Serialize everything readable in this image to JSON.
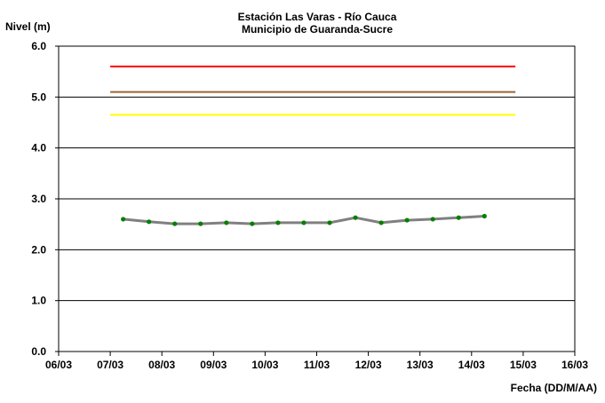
{
  "chart_data": {
    "type": "line",
    "title": "Estación Las Varas - Río Cauca",
    "subtitle": "Municipio de Guaranda-Sucre",
    "ylabel": "Nivel (m)",
    "xlabel": "Fecha (DD/M/AA)",
    "ylim": [
      0,
      6
    ],
    "y_ticks": [
      "0.0",
      "1.0",
      "2.0",
      "3.0",
      "4.0",
      "5.0",
      "6.0"
    ],
    "x_ticks": [
      "06/03",
      "07/03",
      "08/03",
      "09/03",
      "10/03",
      "11/03",
      "12/03",
      "13/03",
      "14/03",
      "15/03",
      "16/03"
    ],
    "x_range_days": [
      0,
      10
    ],
    "grid": "horizontal",
    "thresholds": [
      {
        "color": "#ff0000",
        "y": 5.6,
        "x_start_day": 1.0,
        "x_end_day": 8.85
      },
      {
        "color": "#996633",
        "y": 5.1,
        "x_start_day": 1.0,
        "x_end_day": 8.85
      },
      {
        "color": "#ffff00",
        "y": 4.65,
        "x_start_day": 1.0,
        "x_end_day": 8.85
      }
    ],
    "series": [
      {
        "line_color": "#808080",
        "marker_color": "#008000",
        "x_days": [
          1.25,
          1.75,
          2.25,
          2.75,
          3.25,
          3.75,
          4.25,
          4.75,
          5.25,
          5.75,
          6.25,
          6.75,
          7.25,
          7.75,
          8.25
        ],
        "values": [
          2.6,
          2.55,
          2.51,
          2.51,
          2.53,
          2.51,
          2.53,
          2.53,
          2.53,
          2.63,
          2.53,
          2.58,
          2.6,
          2.63,
          2.66
        ]
      }
    ]
  }
}
